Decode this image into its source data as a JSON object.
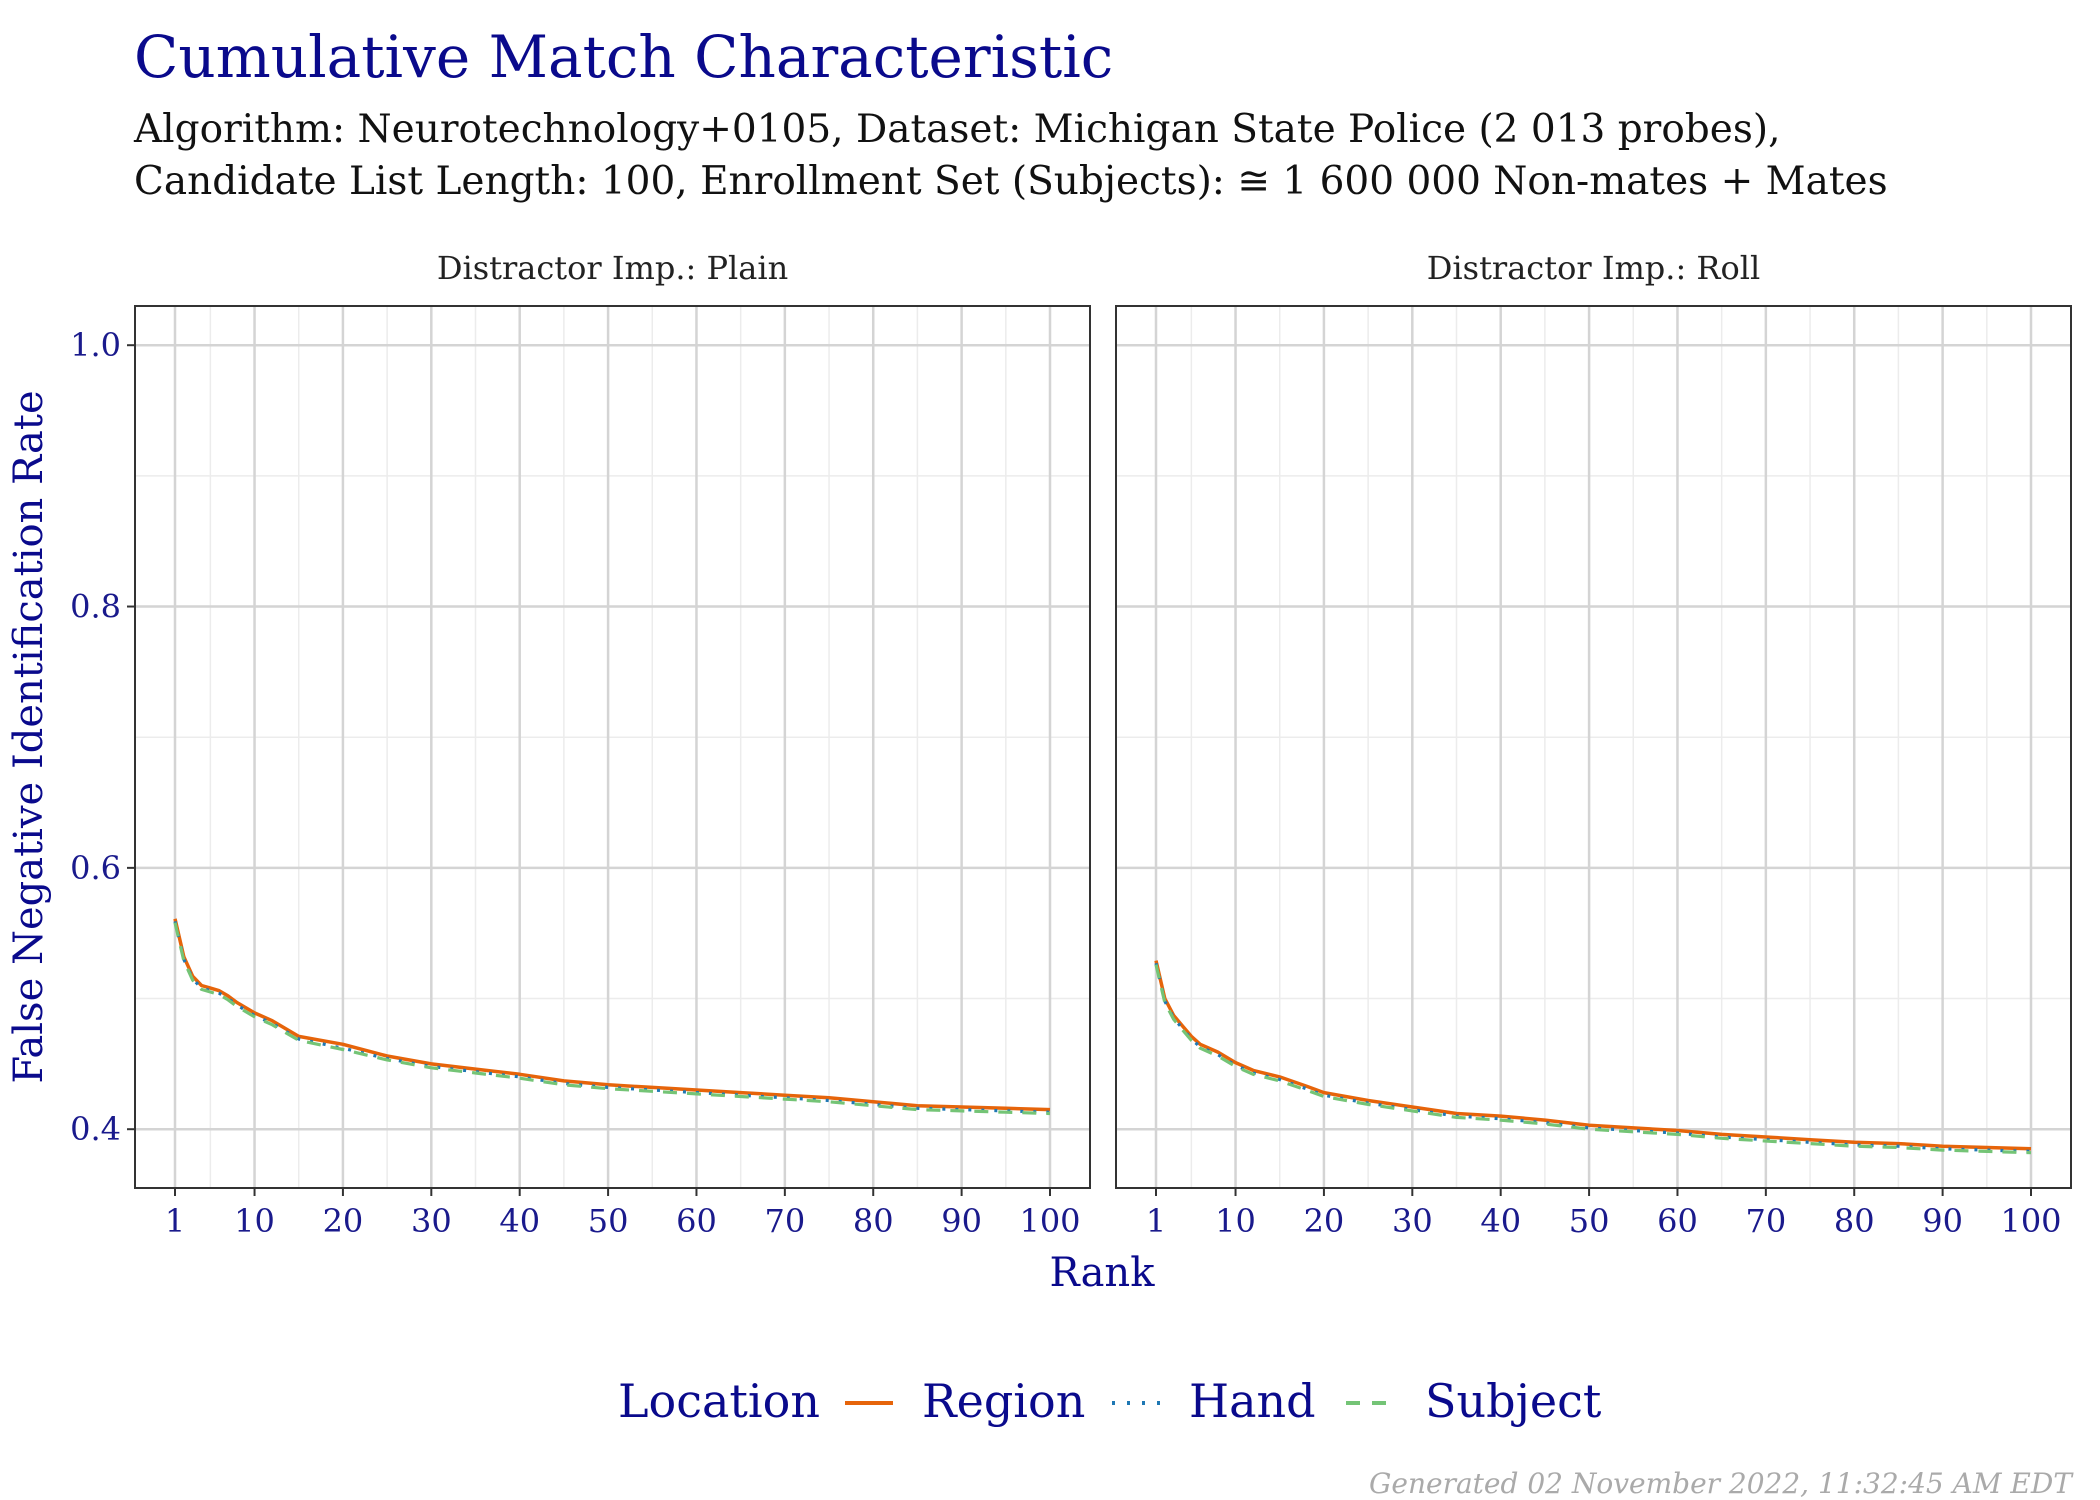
{
  "header": {
    "title": "Cumulative Match Characteristic",
    "subtitle_line1": "Algorithm: Neurotechnology+0105, Dataset: Michigan State Police (2 013 probes),",
    "subtitle_line2": "Candidate List Length: 100, Enrollment Set (Subjects): ≅ 1 600 000 Non-mates + Mates"
  },
  "footer": {
    "generated": "Generated 02 November 2022, 11:32:45 AM EDT"
  },
  "legend": {
    "title": "Location",
    "entries": [
      {
        "name": "Region",
        "color": "#e6640a",
        "style": "solid"
      },
      {
        "name": "Hand",
        "color": "#1f78b4",
        "style": "dotted"
      },
      {
        "name": "Subject",
        "color": "#74c476",
        "style": "dashed"
      }
    ]
  },
  "chart_data": {
    "type": "line",
    "xlabel": "Rank",
    "ylabel": "False Negative Identification Rate",
    "xlim": [
      1,
      100
    ],
    "ylim": [
      0.355,
      1.03
    ],
    "x_ticks": [
      1,
      10,
      20,
      30,
      40,
      50,
      60,
      70,
      80,
      90,
      100
    ],
    "x_tick_labels": [
      "1",
      "10",
      "20",
      "30",
      "40",
      "50",
      "60",
      "70",
      "80",
      "90",
      "100"
    ],
    "y_ticks": [
      0.4,
      0.6,
      0.8,
      1.0
    ],
    "y_tick_labels": [
      "0.4",
      "0.6",
      "0.8",
      "1.0"
    ],
    "grid": true,
    "legend_position": "bottom",
    "panels": [
      {
        "strip": "Distractor Imp.: Plain",
        "series": [
          {
            "name": "Region",
            "x": [
              1,
              2,
              3,
              4,
              5,
              6,
              7,
              8,
              10,
              12,
              15,
              20,
              25,
              30,
              35,
              40,
              45,
              50,
              55,
              60,
              65,
              70,
              75,
              80,
              85,
              90,
              95,
              100
            ],
            "values": [
              0.561,
              0.532,
              0.517,
              0.51,
              0.508,
              0.506,
              0.502,
              0.497,
              0.489,
              0.483,
              0.471,
              0.465,
              0.456,
              0.45,
              0.446,
              0.442,
              0.437,
              0.434,
              0.432,
              0.43,
              0.428,
              0.426,
              0.424,
              0.421,
              0.418,
              0.417,
              0.416,
              0.415
            ]
          },
          {
            "name": "Hand",
            "x": [
              1,
              2,
              3,
              4,
              5,
              6,
              7,
              8,
              10,
              12,
              15,
              20,
              25,
              30,
              35,
              40,
              45,
              50,
              55,
              60,
              65,
              70,
              75,
              80,
              85,
              90,
              95,
              100
            ],
            "values": [
              0.559,
              0.53,
              0.515,
              0.508,
              0.506,
              0.504,
              0.5,
              0.495,
              0.487,
              0.481,
              0.469,
              0.462,
              0.454,
              0.448,
              0.444,
              0.44,
              0.435,
              0.432,
              0.43,
              0.428,
              0.426,
              0.424,
              0.422,
              0.419,
              0.416,
              0.415,
              0.414,
              0.413
            ]
          },
          {
            "name": "Subject",
            "x": [
              1,
              2,
              3,
              4,
              5,
              6,
              7,
              8,
              10,
              12,
              15,
              20,
              25,
              30,
              35,
              40,
              45,
              50,
              55,
              60,
              65,
              70,
              75,
              80,
              85,
              90,
              95,
              100
            ],
            "values": [
              0.558,
              0.529,
              0.514,
              0.507,
              0.505,
              0.503,
              0.499,
              0.494,
              0.486,
              0.48,
              0.468,
              0.461,
              0.453,
              0.447,
              0.443,
              0.439,
              0.434,
              0.431,
              0.429,
              0.427,
              0.425,
              0.423,
              0.421,
              0.418,
              0.415,
              0.414,
              0.413,
              0.412
            ]
          }
        ]
      },
      {
        "strip": "Distractor Imp.: Roll",
        "series": [
          {
            "name": "Region",
            "x": [
              1,
              2,
              3,
              4,
              5,
              6,
              8,
              10,
              12,
              15,
              18,
              20,
              25,
              30,
              35,
              40,
              45,
              50,
              55,
              60,
              65,
              70,
              75,
              80,
              85,
              90,
              95,
              100
            ],
            "values": [
              0.529,
              0.5,
              0.487,
              0.479,
              0.471,
              0.465,
              0.459,
              0.451,
              0.445,
              0.44,
              0.433,
              0.428,
              0.422,
              0.417,
              0.412,
              0.41,
              0.407,
              0.403,
              0.401,
              0.399,
              0.396,
              0.394,
              0.392,
              0.39,
              0.389,
              0.387,
              0.386,
              0.385
            ]
          },
          {
            "name": "Hand",
            "x": [
              1,
              2,
              3,
              4,
              5,
              6,
              8,
              10,
              12,
              15,
              18,
              20,
              25,
              30,
              35,
              40,
              45,
              50,
              55,
              60,
              65,
              70,
              75,
              80,
              85,
              90,
              95,
              100
            ],
            "values": [
              0.527,
              0.498,
              0.485,
              0.477,
              0.469,
              0.463,
              0.457,
              0.449,
              0.443,
              0.438,
              0.431,
              0.426,
              0.42,
              0.415,
              0.41,
              0.408,
              0.405,
              0.401,
              0.399,
              0.397,
              0.394,
              0.392,
              0.39,
              0.388,
              0.387,
              0.385,
              0.384,
              0.383
            ]
          },
          {
            "name": "Subject",
            "x": [
              1,
              2,
              3,
              4,
              5,
              6,
              8,
              10,
              12,
              15,
              18,
              20,
              25,
              30,
              35,
              40,
              45,
              50,
              55,
              60,
              65,
              70,
              75,
              80,
              85,
              90,
              95,
              100
            ],
            "values": [
              0.526,
              0.497,
              0.484,
              0.476,
              0.468,
              0.462,
              0.456,
              0.448,
              0.442,
              0.437,
              0.43,
              0.425,
              0.419,
              0.414,
              0.409,
              0.407,
              0.404,
              0.4,
              0.398,
              0.396,
              0.393,
              0.391,
              0.389,
              0.387,
              0.386,
              0.384,
              0.383,
              0.382
            ]
          }
        ]
      }
    ]
  }
}
